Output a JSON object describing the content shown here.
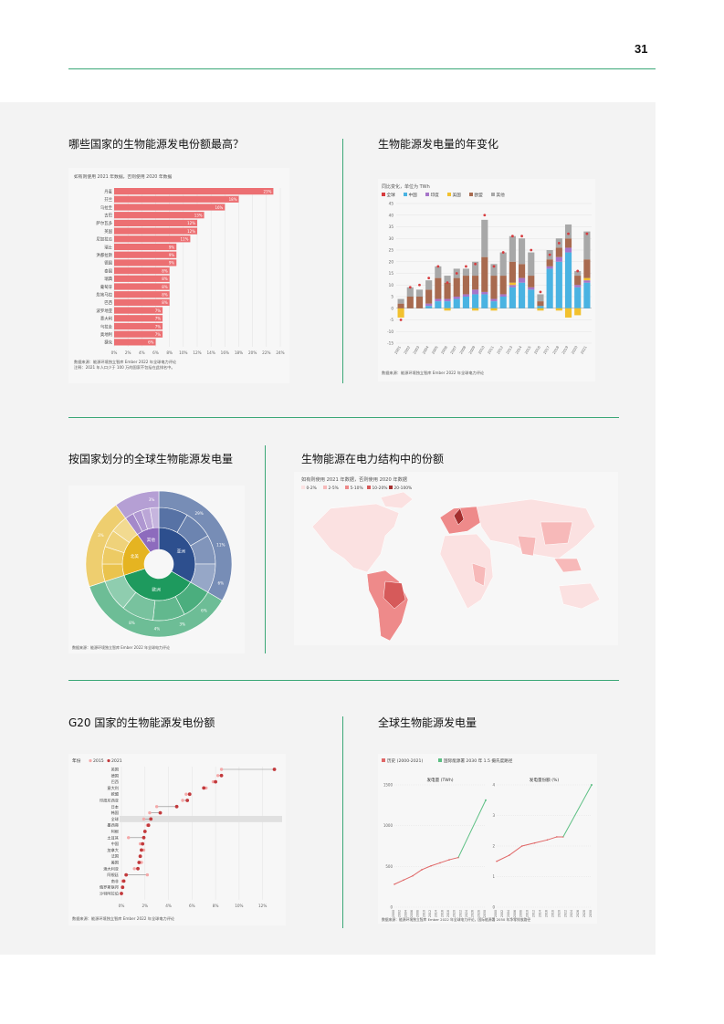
{
  "page": {
    "number": "31"
  },
  "sections": {
    "s1": {
      "title": "哪些国家的生物能源发电份额最高？"
    },
    "s2": {
      "title": "生物能源发电量的年变化"
    },
    "s3": {
      "title": "按国家划分的全球生物能源发电量"
    },
    "s4": {
      "title": "生物能源在电力结构中的份额"
    },
    "s5": {
      "title": "G20 国家的生物能源发电份额"
    },
    "s6": {
      "title": "全球生物能源发电量"
    }
  },
  "chart_data": [
    {
      "id": "share-bar",
      "type": "bar",
      "subtitle": "如有则使用 2021 年数据，否则使用 2020 年数据",
      "categories": [
        "丹麦",
        "芬兰",
        "乌拉圭",
        "古巴",
        "萨尔瓦多",
        "英国",
        "尼加拉瓜",
        "瑞士",
        "洪都拉斯",
        "德国",
        "泰国",
        "瑞典",
        "葡萄牙",
        "危地马拉",
        "巴西",
        "波罗地亚",
        "意大利",
        "乌拉圭",
        "奥地利",
        "捷克"
      ],
      "values": [
        23,
        18,
        16,
        13,
        12,
        12,
        11,
        9,
        9,
        9,
        8,
        8,
        8,
        8,
        8,
        7,
        7,
        7,
        7,
        6
      ],
      "labels": [
        "23%",
        "18%",
        "16%",
        "13%",
        "12%",
        "12%",
        "11%",
        "9%",
        "9%",
        "9%",
        "8%",
        "8%",
        "8%",
        "8%",
        "8%",
        "7%",
        "7%",
        "7%",
        "7%",
        "6%"
      ],
      "xticks": [
        "0%",
        "2%",
        "4%",
        "6%",
        "8%",
        "10%",
        "12%",
        "14%",
        "16%",
        "18%",
        "20%",
        "22%",
        "24%"
      ],
      "xlim": [
        0,
        24
      ],
      "source": "数据来源：能源环境独立智库 Ember 2022 年全球电力评论",
      "note": "注释：2021 年人口少于 100 万的国家不包括在此排名中。",
      "colors": {
        "bar": "#ec6f72"
      }
    },
    {
      "id": "yearly-change",
      "type": "bar",
      "subtitle": "同比变化，单位为 TWh",
      "legend": [
        "全球",
        "中国",
        "印度",
        "美国",
        "欧盟",
        "其他"
      ],
      "colors": {
        "global": "#d73b3e",
        "china": "#4ab3e2",
        "india": "#a675c9",
        "us": "#f2c12e",
        "eu": "#a86a4f",
        "other": "#a8a8a8"
      },
      "categories": [
        "2001",
        "2002",
        "2003",
        "2004",
        "2005",
        "2006",
        "2007",
        "2008",
        "2009",
        "2010",
        "2011",
        "2012",
        "2013",
        "2014",
        "2015",
        "2016",
        "2017",
        "2018",
        "2019",
        "2020",
        "2021"
      ],
      "series": [
        {
          "name": "中国",
          "values": [
            0,
            0,
            0,
            1,
            3,
            3,
            4,
            5,
            6,
            6,
            3,
            5,
            9,
            11,
            8,
            1,
            17,
            20,
            24,
            9,
            11
          ]
        },
        {
          "name": "印度",
          "values": [
            0,
            0,
            0,
            1,
            1,
            1,
            1,
            1,
            2,
            1,
            1,
            1,
            1,
            2,
            1,
            0,
            1,
            2,
            2,
            1,
            1
          ]
        },
        {
          "name": "美国",
          "values": [
            -4,
            0,
            0,
            0,
            0,
            -1,
            0,
            0,
            -1,
            0,
            -1,
            0,
            1,
            0,
            0,
            -1,
            0,
            -1,
            -4,
            -3,
            1
          ]
        },
        {
          "name": "欧盟",
          "values": [
            2,
            5,
            5,
            6,
            9,
            7,
            8,
            8,
            6,
            15,
            10,
            8,
            9,
            6,
            5,
            2,
            3,
            4,
            4,
            4,
            8
          ]
        },
        {
          "name": "其他",
          "values": [
            2,
            4,
            3,
            4,
            5,
            3,
            4,
            3,
            6,
            16,
            5,
            10,
            11,
            11,
            10,
            3,
            4,
            4,
            6,
            2,
            12
          ]
        }
      ],
      "global": [
        -5,
        9,
        10,
        13,
        18,
        11,
        15,
        18,
        19,
        40,
        18,
        24,
        31,
        31,
        25,
        7,
        23,
        28,
        32,
        16,
        32
      ],
      "ylim": [
        -15,
        45
      ],
      "yticks": [
        "-15",
        "-10",
        "-5",
        "0",
        "5",
        "10",
        "15",
        "20",
        "25",
        "30",
        "35",
        "40",
        "45"
      ],
      "source": "数据来源：能源环境独立智库 Ember 2022 年全球电力评论"
    },
    {
      "id": "country-sunburst",
      "type": "pie",
      "inner": [
        {
          "label": "亚洲",
          "value": 30,
          "color": "#2d4f8e"
        },
        {
          "label": "欧洲",
          "value": 33,
          "color": "#1e9a5e"
        },
        {
          "label": "北美",
          "value": 18,
          "color": "#e5b421"
        },
        {
          "label": "其他",
          "value": 9,
          "color": "#8d6bbd"
        }
      ],
      "outer_labels": [
        "29%",
        "11%",
        "6%",
        "6%",
        "3%",
        "4%",
        "8%",
        "3%",
        "3%"
      ],
      "source": "数据来源：能源环境独立智库 Ember 2022 年全球电力评论"
    },
    {
      "id": "share-map",
      "type": "heatmap",
      "subtitle": "如有则使用 2021 年数据，否则使用 2020 年数据",
      "legend": [
        "0-2%",
        "2-5%",
        "5-10%",
        "10-20%",
        "20-100%"
      ],
      "colors": [
        "#fbe1e1",
        "#f7b9b9",
        "#ee8a8a",
        "#d65a5a",
        "#a52f2f"
      ]
    },
    {
      "id": "g20-dot",
      "type": "scatter",
      "legend_title": "年份",
      "legend": [
        "2015",
        "2021"
      ],
      "colors": {
        "y2015": "#f4a9a9",
        "y2021": "#c2393c"
      },
      "categories": [
        "英国",
        "德国",
        "巴西",
        "意大利",
        "欧盟",
        "印度尼西亚",
        "日本",
        "韩国",
        "全球",
        "墨西哥",
        "阿根",
        "土耳其",
        "中国",
        "加拿大",
        "法国",
        "美国",
        "澳大利亚",
        "阿根廷",
        "南非",
        "俄罗斯联邦",
        "沙特阿拉伯"
      ],
      "v2015": [
        8.5,
        8.2,
        7.8,
        7.2,
        5.5,
        5.2,
        3.0,
        2.4,
        1.9,
        2.2,
        2.0,
        0.6,
        1.6,
        1.9,
        1.6,
        1.7,
        1.1,
        2.2,
        0.1,
        0.1,
        0.0
      ],
      "v2021": [
        13,
        8.5,
        8.0,
        7.0,
        5.8,
        5.6,
        4.7,
        3.3,
        2.5,
        2.3,
        2.0,
        1.9,
        1.8,
        1.7,
        1.6,
        1.5,
        1.4,
        0.4,
        0.2,
        0.1,
        0.0
      ],
      "xticks": [
        "0%",
        "2%",
        "4%",
        "6%",
        "8%",
        "10%",
        "12%"
      ],
      "xlim": [
        0,
        13.5
      ],
      "source": "数据来源：能源环境独立智库 Ember 2022 年全球电力评论"
    },
    {
      "id": "global-gen",
      "type": "line",
      "legend": [
        "历史 (2000-2021)",
        "国际能源署 2030 年 1.5 摄氏度路径"
      ],
      "colors": {
        "history": "#e06767",
        "path": "#5cbf83"
      },
      "left": {
        "title": "发电量 (TWh)",
        "history": [
          [
            2000,
            300
          ],
          [
            2003,
            355
          ],
          [
            2006,
            410
          ],
          [
            2009,
            490
          ],
          [
            2012,
            540
          ],
          [
            2015,
            580
          ],
          [
            2018,
            620
          ],
          [
            2021,
            650
          ]
        ],
        "path": [
          [
            2021,
            650
          ],
          [
            2030,
            1400
          ]
        ],
        "ylim": [
          0,
          1600
        ],
        "yticks": [
          "0",
          "500",
          "1000",
          "1500"
        ]
      },
      "right": {
        "title": "发电量份额 (%)",
        "history": [
          [
            2000,
            1.5
          ],
          [
            2004,
            1.7
          ],
          [
            2008,
            2.0
          ],
          [
            2012,
            2.1
          ],
          [
            2016,
            2.2
          ],
          [
            2019,
            2.3
          ],
          [
            2021,
            2.3
          ]
        ],
        "path": [
          [
            2021,
            2.3
          ],
          [
            2030,
            4.0
          ]
        ],
        "ylim": [
          0,
          4
        ],
        "yticks": [
          "0",
          "1",
          "2",
          "3",
          "4"
        ]
      },
      "xticks": [
        "2000",
        "2002",
        "2004",
        "2006",
        "2008",
        "2010",
        "2012",
        "2014",
        "2016",
        "2018",
        "2020",
        "2022",
        "2024",
        "2026",
        "2028",
        "2030"
      ],
      "source": "数据来源：能源环境独立智库 Ember 2022 年全球电力评论，国际能源署 2050 年净零排放路径"
    }
  ]
}
